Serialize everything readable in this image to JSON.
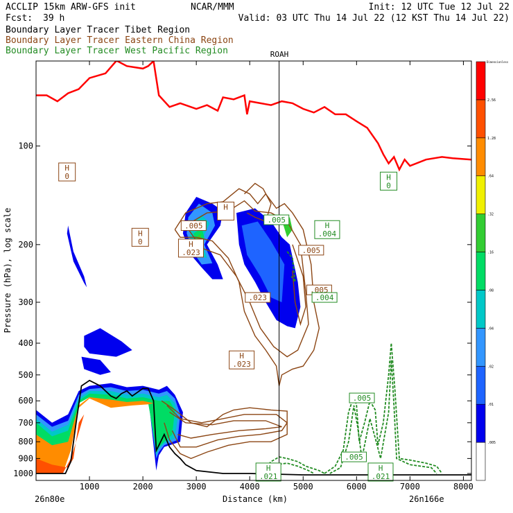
{
  "header": {
    "left_title": "ACCLIP 15km ARW-GFS init",
    "fcst_label": "Fcst:",
    "fcst_value": "39 h",
    "center_title": "NCAR/MMM",
    "init": "Init: 12 UTC Tue 12 Jul 22",
    "valid": "Valid: 03 UTC Thu 14 Jul 22 (12 KST Thu 14 Jul 22)"
  },
  "legend": [
    {
      "text": "Boundary Layer Tracer  Tibet Region",
      "color": "#000000"
    },
    {
      "text": "Boundary Layer Tracer  Eastern China Region",
      "color": "#8b4513"
    },
    {
      "text": "Boundary Layer Tracer  West Pacific Region",
      "color": "#228b22"
    }
  ],
  "chart_data": {
    "type": "cross-section",
    "xlabel": "Distance (km)",
    "ylabel": "Pressure (hPa), log scale",
    "xlim": [
      0,
      8150
    ],
    "ylim": [
      1050,
      55
    ],
    "y_scale": "log",
    "x_ticks": [
      1000,
      2000,
      3000,
      4000,
      5000,
      6000,
      7000,
      8000
    ],
    "y_ticks": [
      100,
      200,
      300,
      400,
      500,
      600,
      700,
      800,
      900,
      1000
    ],
    "endpoint_left": "26n80e",
    "endpoint_right": "26n166e",
    "marker": {
      "label": "ROAH",
      "x": 4550
    },
    "colorbar": {
      "title": "Dimensionless",
      "levels": [
        ".005",
        ".01",
        ".02",
        ".04",
        ".08",
        ".16",
        ".32",
        ".64",
        "1.28",
        "2.56"
      ],
      "colors": [
        "#ffffff",
        "#0000ee",
        "#1e64ff",
        "#3296ff",
        "#00c8c8",
        "#00dc64",
        "#32cd32",
        "#f0f000",
        "#ff8c00",
        "#ff5000",
        "#ff0000"
      ]
    },
    "labels": [
      {
        "text": "H",
        "value": "0",
        "x": 580,
        "p": 120,
        "color": "#8b4513"
      },
      {
        "text": "H",
        "value": "0",
        "x": 1950,
        "p": 190,
        "color": "#8b4513"
      },
      {
        "text": "H",
        "value": ".023",
        "x": 2900,
        "p": 205,
        "color": "#8b4513"
      },
      {
        "text": "H",
        "value": "",
        "x": 3550,
        "p": 158,
        "color": "#8b4513"
      },
      {
        "text": "H",
        "value": ".023",
        "x": 3850,
        "p": 450,
        "color": "#8b4513"
      },
      {
        "text": "H",
        "value": "0",
        "x": 6600,
        "p": 128,
        "color": "#228b22"
      },
      {
        "text": "H",
        "value": ".004",
        "x": 5450,
        "p": 180,
        "color": "#228b22"
      },
      {
        "text": "",
        "value": ".005",
        "x": 2950,
        "p": 175,
        "color": "#8b4513"
      },
      {
        "text": "",
        "value": ".005",
        "x": 5150,
        "p": 208,
        "color": "#8b4513"
      },
      {
        "text": "",
        "value": ".005",
        "x": 5300,
        "p": 275,
        "color": "#8b4513"
      },
      {
        "text": "",
        "value": ".004",
        "x": 5400,
        "p": 290,
        "color": "#228b22"
      },
      {
        "text": "",
        "value": ".023",
        "x": 4150,
        "p": 290,
        "color": "#8b4513"
      },
      {
        "text": "",
        "value": ".005",
        "x": 4500,
        "p": 168,
        "color": "#228b22"
      },
      {
        "text": "",
        "value": ".005",
        "x": 6100,
        "p": 588,
        "color": "#228b22"
      },
      {
        "text": "",
        "value": ".005",
        "x": 5950,
        "p": 890,
        "color": "#228b22"
      },
      {
        "text": "H",
        "value": ".021",
        "x": 4350,
        "p": 990,
        "color": "#228b22"
      },
      {
        "text": "H",
        "value": ".021",
        "x": 6450,
        "p": 990,
        "color": "#228b22"
      },
      {
        "text": "",
        "value": "",
        "x": 2500,
        "p": 560,
        "color": "#8b4513"
      }
    ],
    "tropopause": {
      "color": "#ff0000",
      "x": [
        0,
        200,
        400,
        600,
        800,
        1000,
        1300,
        1500,
        1520,
        1700,
        2000,
        2100,
        2200,
        2300,
        2500,
        2700,
        3000,
        3200,
        3400,
        3500,
        3700,
        3900,
        3950,
        4000,
        4200,
        4400,
        4600,
        4800,
        5000,
        5200,
        5400,
        5600,
        5800,
        6000,
        6200,
        6400,
        6500,
        6600,
        6700,
        6800,
        6900,
        7000,
        7300,
        7600,
        7800,
        8150
      ],
      "p": [
        70,
        70,
        73,
        69,
        67,
        62,
        60,
        55,
        55,
        57,
        58,
        57,
        55,
        70,
        76,
        74,
        77,
        75,
        78,
        71,
        72,
        70,
        80,
        73,
        74,
        75,
        73,
        74,
        77,
        79,
        76,
        80,
        80,
        84,
        88,
        98,
        106,
        113,
        108,
        118,
        110,
        115,
        110,
        108,
        109,
        110
      ]
    },
    "terrain": {
      "color": "#000000",
      "x": [
        0,
        200,
        400,
        550,
        650,
        750,
        850,
        1000,
        1200,
        1400,
        1500,
        1600,
        1700,
        1800,
        2000,
        2100,
        2200,
        2250,
        2300,
        2400,
        2500,
        2600,
        2700,
        2800,
        3000,
        3500,
        4000,
        4500,
        5000,
        6000,
        7000,
        8150
      ],
      "p": [
        1000,
        1000,
        1000,
        1000,
        920,
        700,
        540,
        520,
        540,
        580,
        590,
        570,
        560,
        580,
        550,
        550,
        600,
        850,
        820,
        760,
        830,
        870,
        900,
        940,
        980,
        1000,
        1000,
        1005,
        1010,
        1010,
        1010,
        1010
      ]
    },
    "tracer_series": [
      {
        "name": "Tibet Region",
        "color": "#000000"
      },
      {
        "name": "Eastern China Region",
        "color": "#8b4513"
      },
      {
        "name": "West Pacific Region",
        "color": "#228b22"
      }
    ]
  }
}
